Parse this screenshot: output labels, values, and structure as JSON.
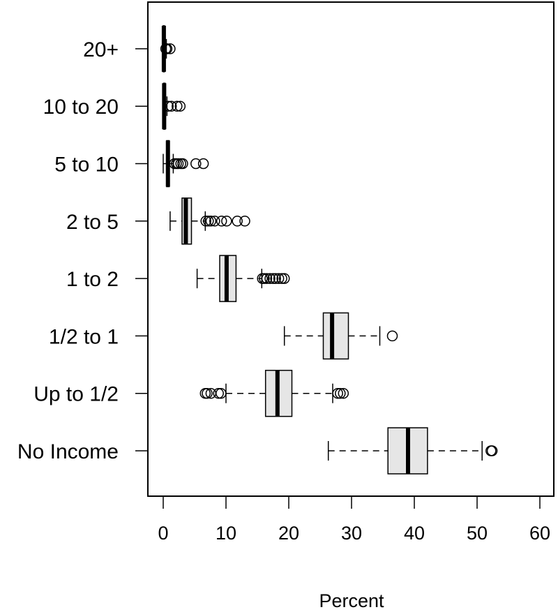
{
  "chart_data": {
    "type": "boxplot",
    "orientation": "horizontal",
    "title": "",
    "xlabel": "Percent",
    "ylabel": "",
    "xlim": [
      -2,
      60
    ],
    "xticks": [
      0,
      10,
      20,
      30,
      40,
      50,
      60
    ],
    "xtick_labels": [
      "0",
      "10",
      "20",
      "30",
      "40",
      "50",
      "60"
    ],
    "grid": false,
    "colors": {
      "box_fill": "#e6e6e6",
      "stroke": "#000000"
    },
    "categories": [
      "No Income",
      "Up to 1/2",
      "1/2 to 1",
      "1 to 2",
      "2 to 5",
      "5 to 10",
      "10 to 20",
      "20+"
    ],
    "boxes": [
      {
        "category": "No Income",
        "whisker_low": 26.3,
        "q1": 35.8,
        "median": 39.0,
        "q3": 42.1,
        "whisker_high": 50.8,
        "outliers": [
          52.2,
          52.4
        ]
      },
      {
        "category": "Up to 1/2",
        "whisker_low": 10.0,
        "q1": 16.3,
        "median": 18.2,
        "q3": 20.5,
        "whisker_high": 27.0,
        "outliers": [
          6.7,
          7.0,
          7.6,
          8.8,
          9.2,
          27.8,
          28.2,
          28.7
        ]
      },
      {
        "category": "1/2 to 1",
        "whisker_low": 19.3,
        "q1": 25.5,
        "median": 26.9,
        "q3": 29.5,
        "whisker_high": 34.5,
        "outliers": [
          36.5
        ]
      },
      {
        "category": "1 to 2",
        "whisker_low": 5.4,
        "q1": 9.0,
        "median": 10.1,
        "q3": 11.6,
        "whisker_high": 15.7,
        "outliers": [
          15.8,
          16.1,
          16.5,
          17.0,
          17.5,
          17.9,
          18.4,
          18.9,
          19.3
        ]
      },
      {
        "category": "2 to 5",
        "whisker_low": 1.1,
        "q1": 3.0,
        "median": 3.6,
        "q3": 4.5,
        "whisker_high": 6.7,
        "outliers": [
          6.8,
          7.2,
          7.6,
          8.2,
          9.3,
          10.1,
          11.8,
          13.0
        ]
      },
      {
        "category": "5 to 10",
        "whisker_low": 0.0,
        "q1": 0.55,
        "median": 0.75,
        "q3": 0.95,
        "whisker_high": 1.6,
        "outliers": [
          1.8,
          2.1,
          2.4,
          2.8,
          3.1,
          5.2,
          6.4
        ]
      },
      {
        "category": "10 to 20",
        "whisker_low": 0.0,
        "q1": 0.05,
        "median": 0.15,
        "q3": 0.3,
        "whisker_high": 0.6,
        "outliers": [
          0.8,
          1.3,
          2.2,
          2.7
        ]
      },
      {
        "category": "20+",
        "whisker_low": 0.0,
        "q1": 0.0,
        "median": 0.1,
        "q3": 0.2,
        "whisker_high": 0.5,
        "outliers": [
          0.4,
          0.6,
          1.1
        ]
      }
    ]
  }
}
